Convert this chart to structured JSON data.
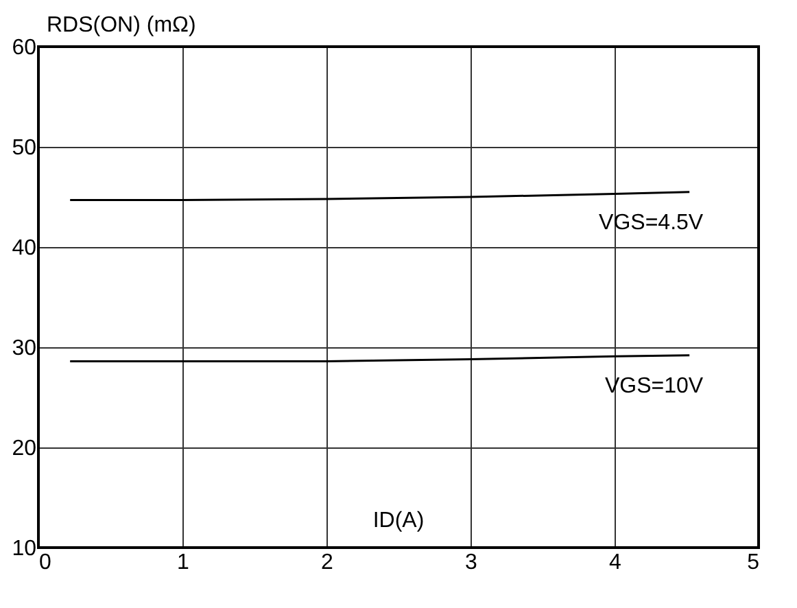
{
  "chart_data": {
    "type": "line",
    "xlabel": "ID(A)",
    "ylabel": "RDS(ON) (mΩ)",
    "xlim": [
      0,
      5
    ],
    "xticks": [
      0,
      1,
      2,
      3,
      4,
      5
    ],
    "ylim": [
      10,
      60
    ],
    "yticks": [
      10,
      20,
      30,
      40,
      50,
      60
    ],
    "grid": true,
    "line_style": "solid",
    "marker": "none",
    "series": [
      {
        "name": "VGS=4.5V",
        "color": "#000000",
        "x": [
          0.22,
          1,
          2,
          3,
          4,
          4.52
        ],
        "values": [
          44.7,
          44.7,
          44.8,
          45.0,
          45.3,
          45.5
        ]
      },
      {
        "name": "VGS=10V",
        "color": "#000000",
        "x": [
          0.22,
          1,
          2,
          3,
          4,
          4.52
        ],
        "values": [
          28.6,
          28.6,
          28.6,
          28.8,
          29.1,
          29.2
        ]
      }
    ]
  }
}
